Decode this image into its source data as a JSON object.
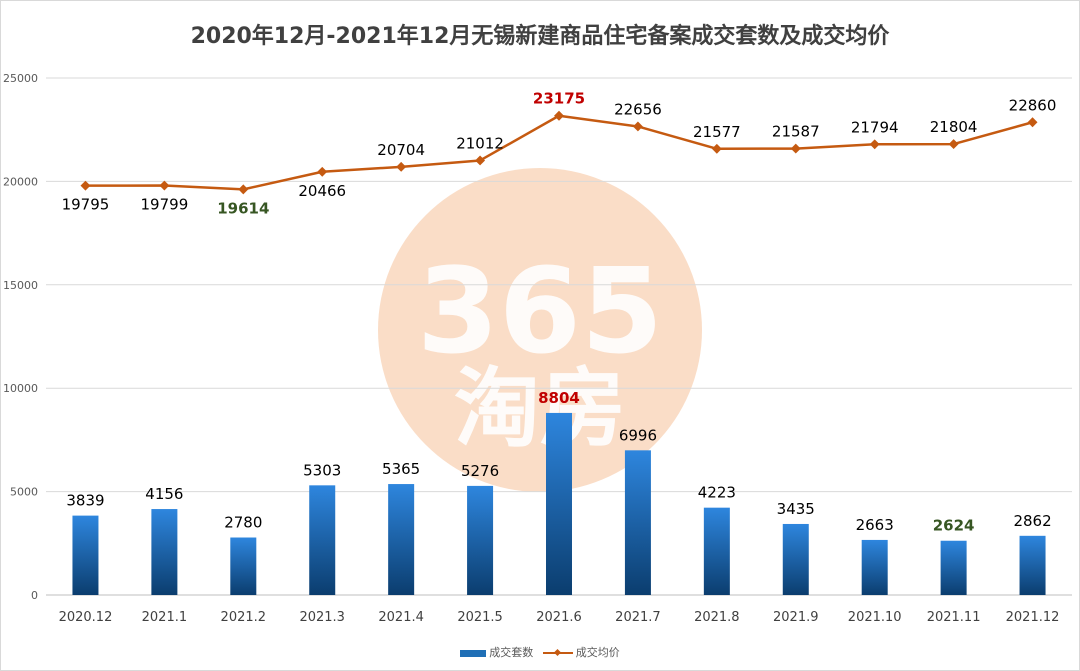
{
  "chart_data": {
    "type": "bar",
    "title": "2020年12月-2021年12月无锡新建商品住宅备案成交套数及成交均价",
    "categories": [
      "2020.12",
      "2021.1",
      "2021.2",
      "2021.3",
      "2021.4",
      "2021.5",
      "2021.6",
      "2021.7",
      "2021.8",
      "2021.9",
      "2021.10",
      "2021.11",
      "2021.12"
    ],
    "ylim": [
      0,
      25000
    ],
    "yticks": [
      0,
      5000,
      10000,
      15000,
      20000,
      25000
    ],
    "grid": true,
    "legend_position": "bottom",
    "series": [
      {
        "name": "成交套数",
        "kind": "bar",
        "color": "#1f6fb6",
        "values": [
          3839,
          4156,
          2780,
          5303,
          5365,
          5276,
          8804,
          6996,
          4223,
          3435,
          2663,
          2624,
          2862
        ],
        "highlight_max_color": "#c00000",
        "highlight_min_color": "#375623"
      },
      {
        "name": "成交均价",
        "kind": "line",
        "color": "#c55a11",
        "values": [
          19795,
          19799,
          19614,
          20466,
          20704,
          21012,
          23175,
          22656,
          21577,
          21587,
          21794,
          21804,
          22860
        ],
        "highlight_max_color": "#c00000",
        "highlight_min_color": "#375623"
      }
    ],
    "watermark": "365淘房"
  }
}
